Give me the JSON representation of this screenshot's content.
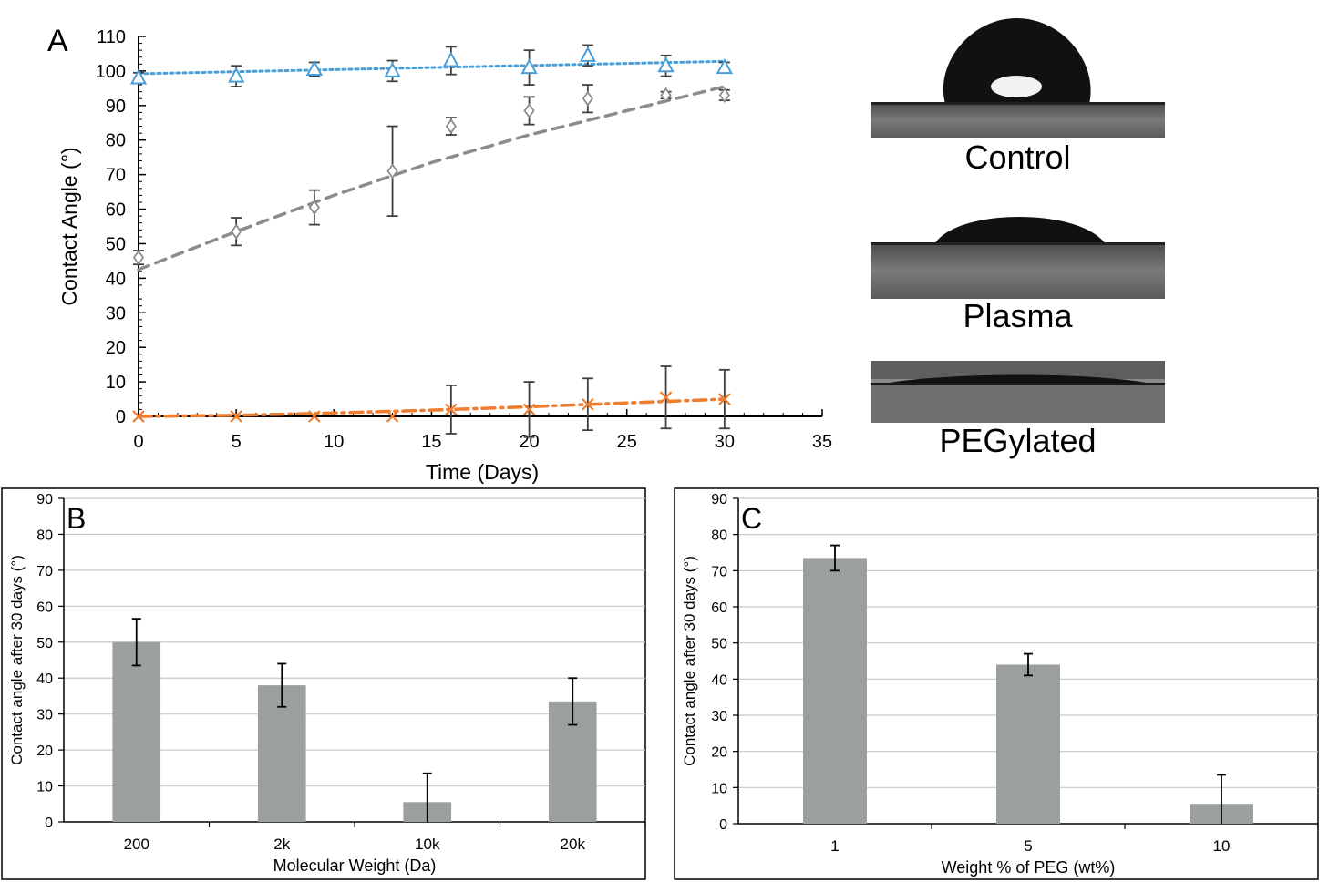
{
  "colors": {
    "blue": "#4a9fd8",
    "gray_line": "#a8a8a8",
    "gray_marker": "#8c8c8c",
    "orange": "#f07c2e",
    "errorbar": "#404040",
    "bar_fill": "#9b9f9e",
    "grid": "#c8c8c8"
  },
  "photos": [
    {
      "caption": "Control",
      "type": "drop-high"
    },
    {
      "caption": "Plasma",
      "type": "drop-medium"
    },
    {
      "caption": "PEGylated",
      "type": "drop-flat"
    }
  ],
  "chart_data": [
    {
      "panel": "A",
      "type": "scatter",
      "xlabel": "Time (Days)",
      "ylabel": "Contact Angle  (°)",
      "xlim": [
        0,
        35
      ],
      "ylim": [
        0,
        110
      ],
      "xticks": [
        0,
        5,
        10,
        15,
        20,
        25,
        30,
        35
      ],
      "yticks": [
        0,
        10,
        20,
        30,
        40,
        50,
        60,
        70,
        80,
        90,
        100,
        110
      ],
      "grid": false,
      "legend": "none",
      "series": [
        {
          "marker": "triangle",
          "color": "#4a9fd8",
          "line": "dotted",
          "x": [
            0,
            5,
            9,
            13,
            16,
            20,
            23,
            27,
            30
          ],
          "y": [
            98,
            98.5,
            100.5,
            100,
            103,
            101,
            104.5,
            101.5,
            101
          ],
          "err": [
            1.5,
            3,
            2,
            3,
            4,
            5,
            3,
            3,
            1.5
          ],
          "trend": {
            "x": [
              0,
              30
            ],
            "y": [
              99.2,
              102.8
            ]
          }
        },
        {
          "marker": "diamond",
          "color": "#8c8c8c",
          "line": "dashed",
          "x": [
            0,
            5,
            9,
            13,
            16,
            20,
            23,
            27,
            30
          ],
          "y": [
            46,
            53.5,
            60.5,
            71,
            84,
            88.5,
            92,
            93,
            93
          ],
          "err": [
            2,
            4,
            5,
            13,
            2.5,
            4,
            4,
            1,
            1.5
          ],
          "trend": {
            "x": [
              0,
              5,
              10,
              15,
              20,
              25,
              30
            ],
            "y": [
              42.5,
              53.5,
              64,
              73.5,
              81.5,
              88.5,
              95.5
            ]
          }
        },
        {
          "marker": "x",
          "color": "#f07c2e",
          "line": "dashdot",
          "x": [
            0,
            5,
            9,
            13,
            16,
            20,
            23,
            27,
            30
          ],
          "y": [
            0,
            0,
            0,
            0,
            2,
            2,
            3.5,
            5.5,
            5
          ],
          "err": [
            0,
            0,
            0,
            0,
            7,
            8,
            7.5,
            9,
            8.5
          ],
          "trend": {
            "x": [
              0,
              5,
              10,
              15,
              20,
              25,
              30
            ],
            "y": [
              0,
              0.3,
              1,
              1.8,
              2.8,
              3.9,
              5
            ]
          }
        }
      ]
    },
    {
      "panel": "B",
      "type": "bar",
      "xlabel": "Molecular Weight (Da)",
      "ylabel": "Contact angle after 30 days (°)",
      "categories": [
        "200",
        "2k",
        "10k",
        "20k"
      ],
      "values": [
        50,
        38,
        5.5,
        33.5
      ],
      "err": [
        6.5,
        6,
        8,
        6.5
      ],
      "ylim": [
        0,
        90
      ],
      "yticks": [
        0,
        10,
        20,
        30,
        40,
        50,
        60,
        70,
        80,
        90
      ],
      "grid": true
    },
    {
      "panel": "C",
      "type": "bar",
      "xlabel": "Weight % of PEG (wt%)",
      "ylabel": "Contact angle after 30 days (°)",
      "categories": [
        "1",
        "5",
        "10"
      ],
      "values": [
        73.5,
        44,
        5.5
      ],
      "err": [
        3.5,
        3,
        8
      ],
      "ylim": [
        0,
        90
      ],
      "yticks": [
        0,
        10,
        20,
        30,
        40,
        50,
        60,
        70,
        80,
        90
      ],
      "grid": true
    }
  ]
}
